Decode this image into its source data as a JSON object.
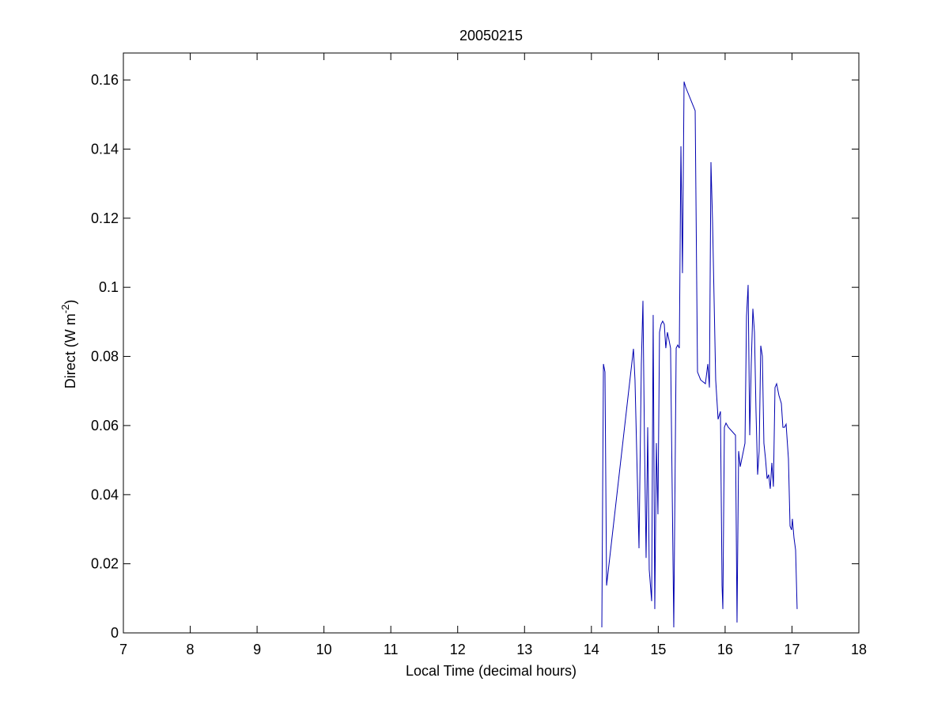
{
  "chart_data": {
    "type": "line",
    "title": "20050215",
    "xlabel": "Local Time (decimal hours)",
    "ylabel": [
      "Direct (W m",
      "-2",
      ")"
    ],
    "color": "#0000b0",
    "x": [
      14.156,
      14.18,
      14.203,
      14.227,
      14.629,
      14.652,
      14.712,
      14.747,
      14.771,
      14.794,
      14.818,
      14.842,
      14.865,
      14.901,
      14.924,
      14.948,
      14.972,
      14.995,
      15.019,
      15.042,
      15.066,
      15.09,
      15.113,
      15.137,
      15.161,
      15.184,
      15.232,
      15.268,
      15.291,
      15.315,
      15.339,
      15.362,
      15.386,
      15.41,
      15.504,
      15.552,
      15.587,
      15.634,
      15.705,
      15.741,
      15.765,
      15.788,
      15.812,
      15.859,
      15.895,
      15.93,
      15.954,
      15.966,
      15.989,
      16.013,
      16.048,
      16.155,
      16.178,
      16.202,
      16.226,
      16.273,
      16.297,
      16.32,
      16.344,
      16.368,
      16.391,
      16.415,
      16.439,
      16.462,
      16.486,
      16.509,
      16.533,
      16.557,
      16.58,
      16.604,
      16.628,
      16.651,
      16.675,
      16.699,
      16.722,
      16.746,
      16.77,
      16.805,
      16.841,
      16.864,
      16.888,
      16.912,
      16.947,
      16.971,
      16.994,
      17.006,
      17.03,
      17.054,
      17.077
    ],
    "values": [
      0.0016,
      0.0778,
      0.0755,
      0.0137,
      0.0822,
      0.0732,
      0.0245,
      0.0778,
      0.0961,
      0.0549,
      0.0217,
      0.0595,
      0.0183,
      0.0092,
      0.092,
      0.0069,
      0.0549,
      0.0343,
      0.087,
      0.0893,
      0.0902,
      0.0893,
      0.0824,
      0.087,
      0.0847,
      0.0824,
      0.0016,
      0.0824,
      0.0833,
      0.0824,
      0.1408,
      0.1041,
      0.1595,
      0.1579,
      0.1534,
      0.1511,
      0.0755,
      0.0732,
      0.0721,
      0.0778,
      0.071,
      0.1362,
      0.119,
      0.0732,
      0.0618,
      0.0641,
      0.0137,
      0.0069,
      0.0595,
      0.0607,
      0.0595,
      0.0572,
      0.003,
      0.0526,
      0.0481,
      0.0526,
      0.0549,
      0.0916,
      0.1007,
      0.0572,
      0.0778,
      0.0938,
      0.087,
      0.0641,
      0.0458,
      0.0526,
      0.0831,
      0.0801,
      0.0549,
      0.0504,
      0.0446,
      0.0458,
      0.0417,
      0.0492,
      0.0423,
      0.071,
      0.0721,
      0.0687,
      0.0664,
      0.0595,
      0.0595,
      0.0604,
      0.0504,
      0.0309,
      0.0298,
      0.033,
      0.0275,
      0.024,
      0.0069
    ],
    "xlim": [
      7,
      18
    ],
    "xticks": [
      7,
      8,
      9,
      10,
      11,
      12,
      13,
      14,
      15,
      16,
      17,
      18
    ],
    "ylim": [
      0,
      0.1678
    ],
    "yticks": [
      0,
      0.02,
      0.04,
      0.06,
      0.08,
      0.1,
      0.12,
      0.14,
      0.16
    ]
  }
}
